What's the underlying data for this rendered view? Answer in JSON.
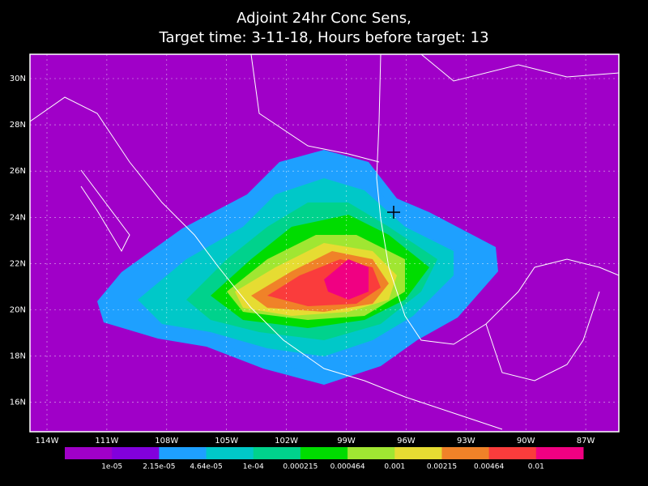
{
  "title": [
    "Adjoint 24hr Conc Sens,",
    "Target time: 3-11-18, Hours before target: 13"
  ],
  "lat_labels": [
    "30N",
    "28N",
    "26N",
    "24N",
    "22N",
    "20N",
    "18N",
    "16N"
  ],
  "lon_labels": [
    "114W",
    "111W",
    "108W",
    "105W",
    "102W",
    "99W",
    "96W",
    "93W",
    "90W",
    "87W"
  ],
  "colorbar": {
    "colors": [
      "#a000c8",
      "#8200dc",
      "#1ea0ff",
      "#00c8c8",
      "#00d28c",
      "#00dc00",
      "#a0e632",
      "#e6dc32",
      "#f08228",
      "#fa3c3c",
      "#f00082"
    ],
    "labels": [
      "1e-05",
      "2.15e-05",
      "4.64e-05",
      "1e-04",
      "0.000215",
      "0.000464",
      "0.001",
      "0.00215",
      "0.00464",
      "0.01"
    ]
  }
}
